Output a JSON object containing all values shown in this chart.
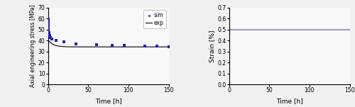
{
  "left_plot": {
    "xlabel": "Time [h]",
    "ylabel": "Axial engineering stress [MPa]",
    "xlim": [
      0,
      150
    ],
    "ylim": [
      0,
      70
    ],
    "yticks": [
      0,
      10,
      20,
      30,
      40,
      50,
      60,
      70
    ],
    "xticks": [
      0,
      50,
      100,
      150
    ],
    "exp_color": "#1a1a1a",
    "sim_color": "#2222bb",
    "sim_marker": "s",
    "sim_points_x": [
      0.02,
      0.05,
      0.1,
      0.2,
      0.4,
      0.7,
      1.2,
      2.0,
      3.5,
      5.0,
      10.0,
      20.0,
      35.0,
      60.0,
      80.0,
      95.0,
      120.0,
      135.0,
      150.0
    ],
    "sim_points_y": [
      59.5,
      58.0,
      56.5,
      54.5,
      52.0,
      49.5,
      47.0,
      44.5,
      42.5,
      41.5,
      40.0,
      38.5,
      37.2,
      36.2,
      35.7,
      35.5,
      35.1,
      34.9,
      34.6
    ],
    "exp_A1": 12.5,
    "exp_tau1": 0.25,
    "exp_A2": 6.5,
    "exp_tau2": 6.0,
    "exp_C": 34.2,
    "legend_labels": [
      "sim",
      "exp"
    ]
  },
  "right_plot": {
    "xlabel": "Time [h]",
    "ylabel": "Strain [%]",
    "xlim": [
      0,
      150
    ],
    "ylim": [
      0,
      0.7
    ],
    "yticks": [
      0.0,
      0.1,
      0.2,
      0.3,
      0.4,
      0.5,
      0.6,
      0.7
    ],
    "xticks": [
      0,
      50,
      100,
      150
    ],
    "strain_value": 0.5,
    "strain_color": "#8888cc"
  },
  "fig_facecolor": "#f0f0f0",
  "axes_facecolor": "#f8f8f8"
}
